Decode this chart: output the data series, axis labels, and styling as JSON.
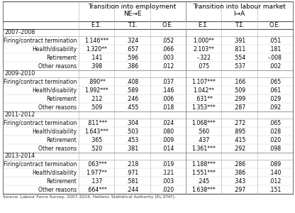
{
  "col_headers": [
    "E.Σ.",
    "T.Σ.",
    "O.E.",
    "E.Σ.",
    "T.Σ.",
    "O.E."
  ],
  "source": "Source: Labour Force Survey, 2007-2014, Hellenic Statistical Authority (EL.STAT).",
  "periods": [
    "2007-2008",
    "2009-2010",
    "2011-2012",
    "2013-2014"
  ],
  "row_labels": [
    "Firing/contract termination",
    "Health/disability",
    "Retirement",
    "Other reasons"
  ],
  "data": {
    "2007-2008": [
      [
        "1.146***",
        ".324",
        ".052",
        "1.000**",
        ".391",
        ".051"
      ],
      [
        "1.320**",
        ".657",
        ".066",
        "2.103**",
        ".811",
        ".181"
      ],
      [
        ".141",
        ".596",
        ".003",
        "-.322",
        ".554",
        "-.008"
      ],
      [
        ".398",
        ".386",
        ".012",
        ".075",
        ".537",
        ".002"
      ]
    ],
    "2009-2010": [
      [
        ".890**",
        ".408",
        ".037",
        "1.107***",
        ".166",
        ".065"
      ],
      [
        "1.992***",
        ".589",
        ".146",
        "1.042**",
        ".509",
        ".061"
      ],
      [
        ".212",
        ".246",
        ".006",
        ".631**",
        ".299",
        ".029"
      ],
      [
        ".509",
        ".455",
        ".018",
        "1.353***",
        ".287",
        ".092"
      ]
    ],
    "2011-2012": [
      [
        ".811***",
        ".304",
        ".024",
        "1.068***",
        ".272",
        ".065"
      ],
      [
        "1.643***",
        ".503",
        ".080",
        ".560",
        ".895",
        ".028"
      ],
      [
        ".365",
        ".453",
        ".009",
        ".437",
        ".415",
        ".020"
      ],
      [
        ".520",
        ".381",
        ".014",
        "1.361***",
        ".292",
        ".098"
      ]
    ],
    "2013-2014": [
      [
        ".063***",
        ".218",
        ".019",
        "1.188***",
        ".286",
        ".089"
      ],
      [
        "1.977**",
        ".971",
        ".121",
        "1.551***",
        ".386",
        ".140"
      ],
      [
        ".137",
        ".581",
        ".003",
        ".245",
        ".343",
        ".012"
      ],
      [
        ".664***",
        ".244",
        ".020",
        "1.638***",
        ".297",
        ".151"
      ]
    ]
  },
  "bg_color": "#ffffff",
  "font_size": 5.8,
  "header_font_size": 6.5
}
